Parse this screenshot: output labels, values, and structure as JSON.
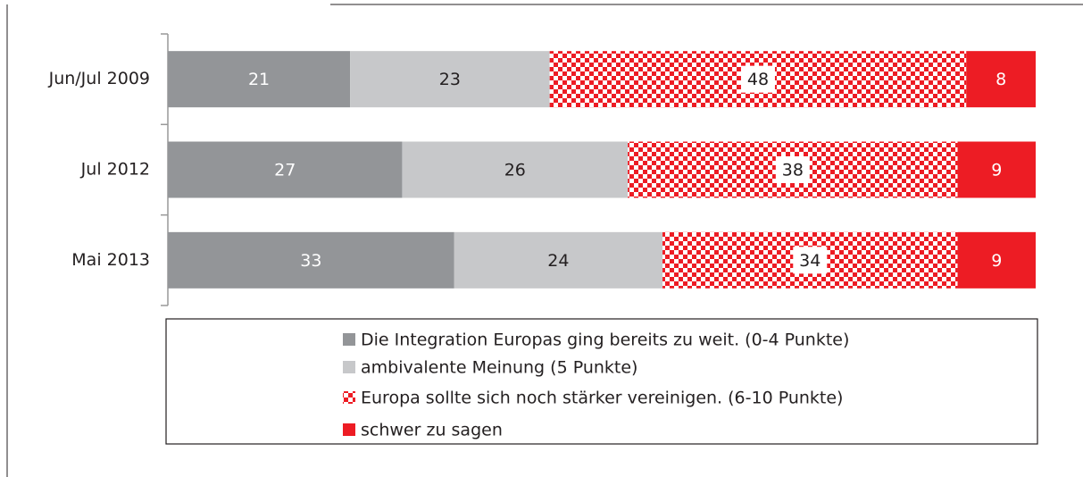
{
  "chart_data": {
    "type": "stacked-bar-horizontal",
    "categories": [
      "Jun/Jul 2009",
      "Jul 2012",
      "Mai 2013"
    ],
    "series": [
      {
        "name": "Die Integration Europas ging bereits zu weit. (0-4 Punkte)",
        "color": "#939598",
        "values": [
          21,
          27,
          33
        ]
      },
      {
        "name": "ambivalente Meinung (5 Punkte)",
        "color": "#c7c8ca",
        "values": [
          23,
          26,
          24
        ]
      },
      {
        "name": "Europa sollte sich noch stärker vereinigen. (6-10 Punkte)",
        "color": "#ed1c24",
        "pattern": "checker",
        "values": [
          48,
          38,
          34
        ]
      },
      {
        "name": "schwer zu sagen",
        "color": "#ed1c24",
        "values": [
          8,
          9,
          9
        ]
      }
    ],
    "xlim": [
      0,
      100
    ]
  }
}
